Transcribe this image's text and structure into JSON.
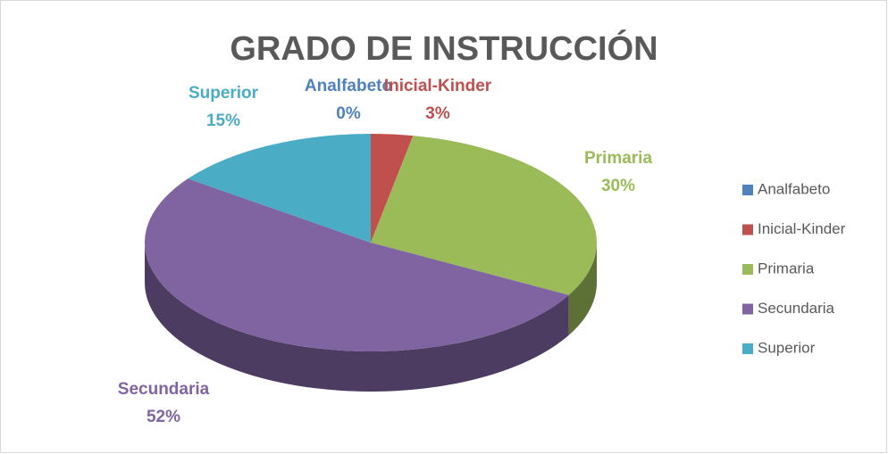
{
  "chart_data": {
    "type": "pie",
    "title": "GRADO DE INSTRUCCIÓN",
    "categories": [
      "Analfabeto",
      "Inicial-Kinder",
      "Primaria",
      "Secundaria",
      "Superior"
    ],
    "values": [
      0,
      3,
      30,
      52,
      15
    ],
    "value_labels": [
      "0%",
      "3%",
      "30%",
      "52%",
      "15%"
    ],
    "colors": [
      "#4f81bd",
      "#c0504d",
      "#9bbb59",
      "#8064a2",
      "#4bacc6"
    ],
    "legend": "right"
  }
}
